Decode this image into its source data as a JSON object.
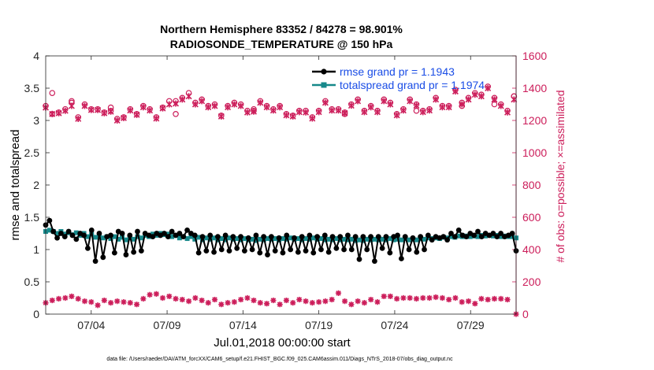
{
  "chart_data": {
    "type": "line",
    "title": "Northern Hemisphere 83352 / 84278 = 98.901%",
    "subtitle": "RADIOSONDE_TEMPERATURE @ 150 hPa",
    "xlabel": "Jul.01,2018 00:00:00 start",
    "ylabel": "rmse and totalspread",
    "y2label": "# of obs: o=possible; ×=assimilated",
    "footer": "data file: /Users/raeder/DAI/ATM_forcXX/CAM6_setup/f.e21.FHIST_BGC.f09_025.CAM6assim.011/Diags_NTrS_2018-07/obs_diag_output.nc",
    "xlim": [
      1,
      32
    ],
    "ylim": [
      0,
      4
    ],
    "y2lim": [
      0,
      1600
    ],
    "x_ticks": [
      4,
      9,
      14,
      19,
      24,
      29
    ],
    "x_tick_labels": [
      "07/04",
      "07/09",
      "07/14",
      "07/19",
      "07/24",
      "07/29"
    ],
    "y_ticks": [
      0,
      0.5,
      1,
      1.5,
      2,
      2.5,
      3,
      3.5,
      4
    ],
    "y_tick_labels": [
      "0",
      "0.5",
      "1",
      "1.5",
      "2",
      "2.5",
      "3",
      "3.5",
      "4"
    ],
    "y2_ticks": [
      0,
      200,
      400,
      600,
      800,
      1000,
      1200,
      1400,
      1600
    ],
    "y2_tick_labels": [
      "0",
      "200",
      "400",
      "600",
      "800",
      "1000",
      "1200",
      "1400",
      "1600"
    ],
    "legend": [
      {
        "label": "rmse grand pr = 1.1943",
        "color": "#000000"
      },
      {
        "label": "totalspread grand pr = 1.1974",
        "color": "#16888a"
      }
    ],
    "legend_position": "top-right",
    "colors": {
      "rmse": "#000000",
      "spread": "#16888a",
      "obs": "#cc1d5a",
      "legend_text": "#1a4de6"
    },
    "series": [
      {
        "name": "rmse",
        "values": [
          1.38,
          1.45,
          1.28,
          1.18,
          1.25,
          1.2,
          1.28,
          1.22,
          1.16,
          1.25,
          1.22,
          1.02,
          1.3,
          0.82,
          1.25,
          0.88,
          1.2,
          1.22,
          0.95,
          1.28,
          1.25,
          0.92,
          1.22,
          0.96,
          1.28,
          0.98,
          1.25,
          1.22,
          1.2,
          1.25,
          1.22,
          1.25,
          1.2,
          1.28,
          1.22,
          1.25,
          1.2,
          1.3,
          1.25,
          1.22,
          0.95,
          1.2,
          0.98,
          1.22,
          0.96,
          1.2,
          1.0,
          1.22,
          0.98,
          1.2,
          1.02,
          1.2,
          0.98,
          1.18,
          1.0,
          1.22,
          0.95,
          1.2,
          0.92,
          1.2,
          0.98,
          1.18,
          0.95,
          1.22,
          1.0,
          1.18,
          0.96,
          1.2,
          0.98,
          1.22,
          0.95,
          1.2,
          1.0,
          1.22,
          0.96,
          1.2,
          1.02,
          1.2,
          1.0,
          1.22,
          1.0,
          1.2,
          0.85,
          1.2,
          1.0,
          1.2,
          0.82,
          1.2,
          1.02,
          1.2,
          0.95,
          1.2,
          1.22,
          0.86,
          1.2,
          1.0,
          1.18,
          0.96,
          1.2,
          1.0,
          1.22,
          1.15,
          1.2,
          1.18,
          1.2,
          1.15,
          1.25,
          1.2,
          1.3,
          1.22,
          1.2,
          1.25,
          1.22,
          1.28,
          1.2,
          1.25,
          1.22,
          1.25,
          1.2,
          1.25,
          1.2,
          1.22,
          1.25,
          0.98
        ]
      },
      {
        "name": "totalspread",
        "values": [
          1.28,
          1.3,
          1.28,
          1.25,
          1.28,
          1.24,
          1.26,
          1.23,
          1.26,
          1.22,
          1.25,
          1.2,
          1.24,
          1.19,
          1.22,
          1.18,
          1.2,
          1.17,
          1.2,
          1.16,
          1.19,
          1.15,
          1.18,
          1.16,
          1.2,
          1.18,
          1.22,
          1.2,
          1.24,
          1.22,
          1.25,
          1.23,
          1.24,
          1.2,
          1.22,
          1.18,
          1.2,
          1.17,
          1.2,
          1.16,
          1.19,
          1.15,
          1.18,
          1.16,
          1.18,
          1.15,
          1.17,
          1.15,
          1.18,
          1.16,
          1.17,
          1.15,
          1.17,
          1.15,
          1.16,
          1.14,
          1.16,
          1.15,
          1.17,
          1.16,
          1.17,
          1.15,
          1.17,
          1.16,
          1.18,
          1.16,
          1.17,
          1.15,
          1.17,
          1.16,
          1.18,
          1.16,
          1.17,
          1.15,
          1.16,
          1.15,
          1.17,
          1.15,
          1.16,
          1.15,
          1.16,
          1.14,
          1.15,
          1.14,
          1.16,
          1.15,
          1.16,
          1.15,
          1.16,
          1.15,
          1.17,
          1.15,
          1.16,
          1.15,
          1.17,
          1.15,
          1.16,
          1.15,
          1.17,
          1.16,
          1.18,
          1.17,
          1.18,
          1.17,
          1.19,
          1.18,
          1.2,
          1.19,
          1.21,
          1.2,
          1.21,
          1.2,
          1.21,
          1.2,
          1.22,
          1.21,
          1.22,
          1.21,
          1.22,
          1.2,
          1.21,
          1.2,
          1.2,
          1.18
        ]
      },
      {
        "name": "obs possible",
        "values": [
          1290,
          1240,
          1250,
          1270,
          1310,
          1220,
          1300,
          1270,
          1270,
          1250,
          1260,
          1210,
          1220,
          1270,
          1240,
          1290,
          1270,
          1220,
          1280,
          1320,
          1320,
          1340,
          1370,
          1310,
          1330,
          1290,
          1300,
          1230,
          1290,
          1310,
          1300,
          1260,
          1260,
          1320,
          1290,
          1270,
          1290,
          1240,
          1230,
          1260,
          1260,
          1220,
          1260,
          1320,
          1270,
          1270,
          1250,
          1300,
          1330,
          1260,
          1290,
          1260,
          1330,
          1310,
          1240,
          1270,
          1330,
          1300,
          1260,
          1270,
          1340,
          1290,
          1290,
          1390,
          1310,
          1340,
          1370,
          1360,
          1410,
          1340,
          1300,
          1260,
          1350,
          1370,
          1320,
          1280,
          1240,
          1270,
          1240,
          1260,
          1290,
          1300,
          1350
        ],
        "x": [
          1.0,
          1.43,
          1.86,
          2.29,
          2.71,
          3.14,
          3.57,
          4.0,
          4.43,
          4.86,
          5.29,
          5.71,
          6.14,
          6.57,
          7.0,
          7.43,
          7.86,
          8.29,
          8.71,
          9.14,
          9.57,
          10.0,
          10.43,
          10.86,
          11.29,
          11.71,
          12.14,
          12.57,
          13.0,
          13.43,
          13.86,
          14.29,
          14.71,
          15.14,
          15.57,
          16.0,
          16.43,
          16.86,
          17.29,
          17.71,
          18.14,
          18.57,
          19.0,
          19.43,
          19.86,
          20.29,
          20.71,
          21.14,
          21.57,
          22.0,
          22.43,
          22.86,
          23.29,
          23.71,
          24.14,
          24.57,
          25.0,
          25.43,
          25.86,
          26.29,
          26.71,
          27.14,
          27.57,
          28.0,
          28.43,
          28.86,
          29.29,
          29.71,
          30.14,
          30.57,
          31.0,
          31.43,
          31.86,
          1.43,
          2.71,
          5.29,
          9.57,
          14.71,
          20.71,
          25.43,
          28.43,
          30.57,
          31.86
        ]
      },
      {
        "name": "obs assimilated",
        "values": [
          1280,
          1240,
          1245,
          1260,
          1290,
          1210,
          1290,
          1265,
          1265,
          1245,
          1255,
          1200,
          1215,
          1262,
          1235,
          1282,
          1262,
          1212,
          1275,
          1300,
          1305,
          1330,
          1350,
          1300,
          1320,
          1282,
          1290,
          1225,
          1282,
          1300,
          1290,
          1250,
          1255,
          1310,
          1282,
          1262,
          1282,
          1232,
          1225,
          1252,
          1250,
          1212,
          1252,
          1310,
          1262,
          1262,
          1245,
          1292,
          1320,
          1252,
          1282,
          1252,
          1320,
          1300,
          1232,
          1262,
          1320,
          1292,
          1252,
          1262,
          1330,
          1282,
          1282,
          1380,
          1300,
          1330,
          1360,
          1350,
          1400,
          1330,
          1290,
          1250,
          1330
        ],
        "x": [
          1.0,
          1.43,
          1.86,
          2.29,
          2.71,
          3.14,
          3.57,
          4.0,
          4.43,
          4.86,
          5.29,
          5.71,
          6.14,
          6.57,
          7.0,
          7.43,
          7.86,
          8.29,
          8.71,
          9.14,
          9.57,
          10.0,
          10.43,
          10.86,
          11.29,
          11.71,
          12.14,
          12.57,
          13.0,
          13.43,
          13.86,
          14.29,
          14.71,
          15.14,
          15.57,
          16.0,
          16.43,
          16.86,
          17.29,
          17.71,
          18.14,
          18.57,
          19.0,
          19.43,
          19.86,
          20.29,
          20.71,
          21.14,
          21.57,
          22.0,
          22.43,
          22.86,
          23.29,
          23.71,
          24.14,
          24.57,
          25.0,
          25.43,
          25.86,
          26.29,
          26.71,
          27.14,
          27.57,
          28.0,
          28.43,
          28.86,
          29.29,
          29.71,
          30.14,
          30.57,
          31.0,
          31.43,
          31.86
        ]
      },
      {
        "name": "obs low possible",
        "values": [
          70,
          85,
          95,
          100,
          110,
          95,
          80,
          75,
          55,
          85,
          70,
          80,
          75,
          70,
          60,
          95,
          120,
          125,
          100,
          110,
          95,
          90,
          80,
          100,
          85,
          70,
          90,
          60,
          70,
          75,
          90,
          100,
          85,
          70,
          65,
          85,
          60,
          85,
          70,
          90,
          80,
          70,
          75,
          80,
          90,
          130,
          80,
          60,
          80,
          70,
          90,
          75,
          110,
          110,
          95,
          100,
          100,
          95,
          100,
          100,
          105,
          100,
          90,
          100,
          75,
          80,
          65,
          95,
          90,
          95,
          95,
          90,
          0
        ],
        "x": [
          1.0,
          1.43,
          1.86,
          2.29,
          2.71,
          3.14,
          3.57,
          4.0,
          4.43,
          4.86,
          5.29,
          5.71,
          6.14,
          6.57,
          7.0,
          7.43,
          7.86,
          8.29,
          8.71,
          9.14,
          9.57,
          10.0,
          10.43,
          10.86,
          11.29,
          11.71,
          12.14,
          12.57,
          13.0,
          13.43,
          13.86,
          14.29,
          14.71,
          15.14,
          15.57,
          16.0,
          16.43,
          16.86,
          17.29,
          17.71,
          18.14,
          18.57,
          19.0,
          19.43,
          19.86,
          20.29,
          20.71,
          21.14,
          21.57,
          22.0,
          22.43,
          22.86,
          23.29,
          23.71,
          24.14,
          24.57,
          25.0,
          25.43,
          25.86,
          26.29,
          26.71,
          27.14,
          27.57,
          28.0,
          28.43,
          28.86,
          29.29,
          29.71,
          30.14,
          30.57,
          31.0,
          31.43,
          32.0
        ]
      }
    ]
  }
}
